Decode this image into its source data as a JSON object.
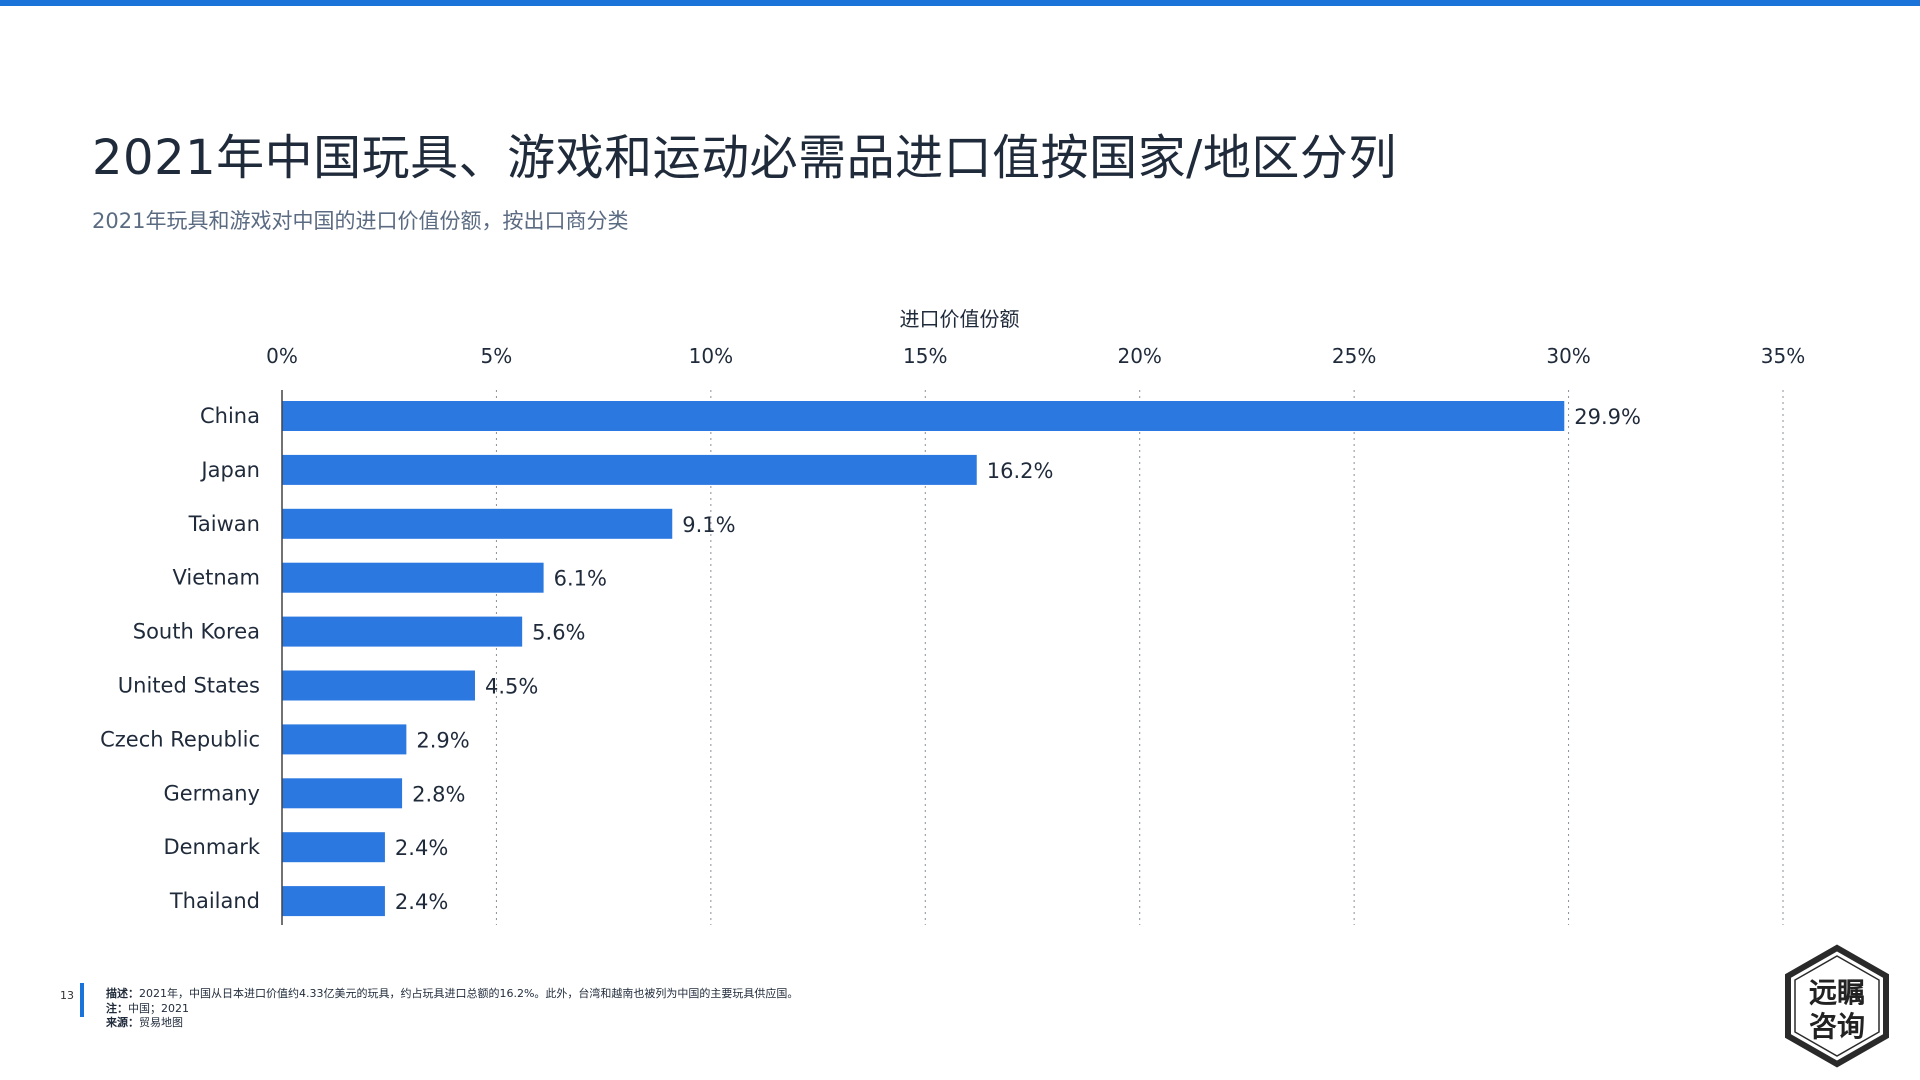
{
  "title": "2021年中国玩具、游戏和运动必需品进口值按国家/地区分列",
  "subtitle": "2021年玩具和游戏对中国的进口价值份额，按出口商分类",
  "colors": {
    "accent": "#1a73d9",
    "bar": "#2b78e0",
    "text": "#1f2a3a"
  },
  "chart_data": {
    "type": "bar",
    "orientation": "horizontal",
    "xlabel": "进口价值份额",
    "xlim": [
      0,
      35
    ],
    "ticks": [
      0,
      5,
      10,
      15,
      20,
      25,
      30,
      35
    ],
    "tick_labels": [
      "0%",
      "5%",
      "10%",
      "15%",
      "20%",
      "25%",
      "30%",
      "35%"
    ],
    "axis_position": "top",
    "grid": "vertical-dotted",
    "categories": [
      "China",
      "Japan",
      "Taiwan",
      "Vietnam",
      "South Korea",
      "United States",
      "Czech Republic",
      "Germany",
      "Denmark",
      "Thailand"
    ],
    "values": [
      29.9,
      16.2,
      9.1,
      6.1,
      5.6,
      4.5,
      2.9,
      2.8,
      2.4,
      2.4
    ],
    "value_labels": [
      "29.9%",
      "16.2%",
      "9.1%",
      "6.1%",
      "5.6%",
      "4.5%",
      "2.9%",
      "2.8%",
      "2.4%",
      "2.4%"
    ]
  },
  "footer": {
    "page_number": "13",
    "description_label": "描述：",
    "description": "2021年，中国从日本进口价值约4.33亿美元的玩具，约占玩具进口总额的16.2%。此外，台湾和越南也被列为中国的主要玩具供应国。",
    "note_label": "注：",
    "note": "中国；2021",
    "source_label": "来源：",
    "source": "贸易地图"
  },
  "logo": {
    "text_line1": "远瞩",
    "text_line2": "咨询"
  }
}
